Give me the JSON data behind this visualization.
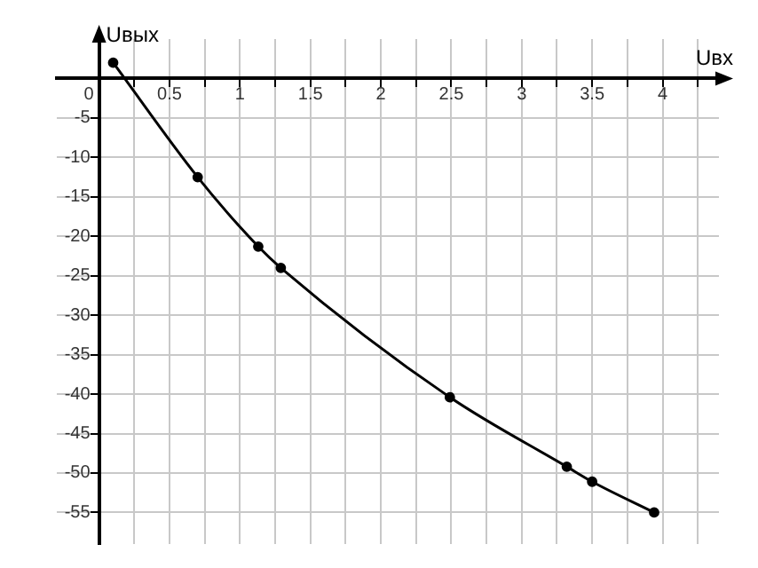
{
  "chart_data": {
    "type": "line",
    "xlabel": "Uвх",
    "ylabel": "Uвых",
    "x": [
      0.1,
      0.7,
      1.13,
      1.29,
      2.49,
      3.32,
      3.5,
      3.94
    ],
    "series": [
      {
        "color": "#000000",
        "values": [
          2,
          -12.5,
          -21.3,
          -24,
          -40.4,
          -49.2,
          -51.1,
          -55
        ]
      }
    ],
    "xlim": [
      -0.3,
      4.4
    ],
    "ylim": [
      -59,
      5
    ],
    "xticks": [
      {
        "value": 0,
        "label": "0"
      },
      {
        "value": 0.25,
        "label": null
      },
      0.5,
      {
        "value": 0.75,
        "label": null
      },
      1,
      {
        "value": 1.25,
        "label": null
      },
      1.5,
      {
        "value": 1.75,
        "label": null
      },
      2,
      {
        "value": 2.25,
        "label": null
      },
      2.5,
      {
        "value": 2.75,
        "label": null
      },
      3,
      {
        "value": 3.25,
        "label": null
      },
      3.5,
      {
        "value": 3.75,
        "label": null
      },
      4,
      {
        "value": 4.25,
        "label": null
      }
    ],
    "yticks": [
      {
        "value": 0,
        "label": null
      },
      -5,
      -10,
      -15,
      -20,
      -25,
      -30,
      -35,
      -40,
      -45,
      -50,
      -55
    ],
    "grid": true,
    "marker": "circle",
    "line_style": "solid",
    "legend": false
  }
}
